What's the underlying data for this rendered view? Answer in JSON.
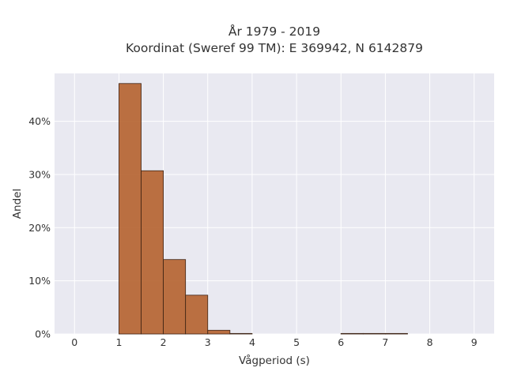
{
  "chart_data": {
    "type": "bar",
    "title": [
      "År 1979 - 2019",
      "Koordinat (Sweref 99 TM): E 369942, N 6142879"
    ],
    "xlabel": "Vågperiod (s)",
    "ylabel": "Andel",
    "xlim": [
      -0.45,
      9.45
    ],
    "ylim": [
      0,
      0.49
    ],
    "x_ticks": [
      0,
      1,
      2,
      3,
      4,
      5,
      6,
      7,
      8,
      9
    ],
    "x_tick_labels": [
      "0",
      "1",
      "2",
      "3",
      "4",
      "5",
      "6",
      "7",
      "8",
      "9"
    ],
    "y_ticks": [
      0,
      0.1,
      0.2,
      0.3,
      0.4
    ],
    "y_tick_labels": [
      "0%",
      "10%",
      "20%",
      "30%",
      "40%"
    ],
    "bins": [
      {
        "x0": 1.0,
        "x1": 1.5,
        "value": 0.471
      },
      {
        "x0": 1.5,
        "x1": 2.0,
        "value": 0.307
      },
      {
        "x0": 2.0,
        "x1": 2.5,
        "value": 0.14
      },
      {
        "x0": 2.5,
        "x1": 3.0,
        "value": 0.073
      },
      {
        "x0": 3.0,
        "x1": 3.5,
        "value": 0.007
      },
      {
        "x0": 3.5,
        "x1": 4.0,
        "value": 0.001
      },
      {
        "x0": 6.0,
        "x1": 6.5,
        "value": 0.001
      },
      {
        "x0": 6.5,
        "x1": 7.0,
        "value": 0.001
      },
      {
        "x0": 7.0,
        "x1": 7.5,
        "value": 0.001
      }
    ],
    "grid": true,
    "colors": {
      "bar_fill": "#b5622e",
      "bar_stroke": "#3d2314",
      "plot_bg": "#e9e9f1",
      "grid": "#ffffff"
    }
  }
}
